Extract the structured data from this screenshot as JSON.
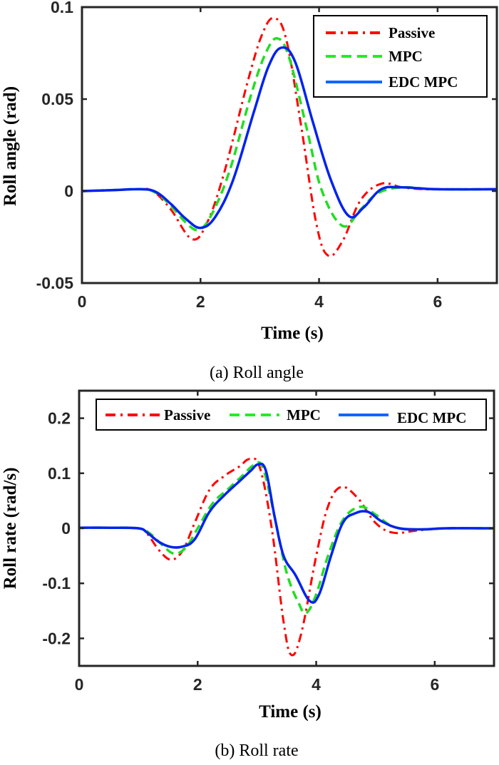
{
  "chart_data": [
    {
      "type": "line",
      "caption": "(a) Roll angle",
      "xlabel": "Time (s)",
      "ylabel": "Roll angle (rad)",
      "xlim": [
        0,
        7
      ],
      "ylim": [
        -0.05,
        0.1
      ],
      "xticks": [
        0,
        2,
        4,
        6
      ],
      "xtick_labels": [
        "0",
        "2",
        "4",
        "6"
      ],
      "yticks": [
        -0.05,
        0,
        0.05,
        0.1
      ],
      "ytick_labels": [
        "-0.05",
        "0",
        "0.05",
        "0.1"
      ],
      "grid": false,
      "legend": {
        "placement": "top-right",
        "orientation": "vertical",
        "entries": [
          "Passive",
          "MPC",
          "EDC MPC"
        ]
      },
      "series": [
        {
          "name": "Passive",
          "color": "#ff0000",
          "style": "dash-dot",
          "x": [
            0,
            0.5,
            1.0,
            1.2,
            1.5,
            1.85,
            2.1,
            2.4,
            2.8,
            3.05,
            3.25,
            3.45,
            3.7,
            3.95,
            4.15,
            4.4,
            4.7,
            5.05,
            5.4,
            5.8,
            6.3,
            7.0
          ],
          "y": [
            0,
            0.0005,
            0.001,
            0.0,
            -0.01,
            -0.026,
            -0.018,
            0.01,
            0.06,
            0.086,
            0.094,
            0.082,
            0.035,
            -0.017,
            -0.035,
            -0.027,
            -0.005,
            0.004,
            0.002,
            0.001,
            0.001,
            0.001
          ]
        },
        {
          "name": "MPC",
          "color": "#22dd22",
          "style": "dashed",
          "x": [
            0,
            0.5,
            1.0,
            1.25,
            1.5,
            1.75,
            1.97,
            2.2,
            2.5,
            2.85,
            3.1,
            3.3,
            3.5,
            3.8,
            4.05,
            4.4,
            4.7,
            5.0,
            5.4,
            6.0,
            7.0
          ],
          "y": [
            0,
            0.0005,
            0.001,
            -0.001,
            -0.008,
            -0.017,
            -0.021,
            -0.012,
            0.012,
            0.052,
            0.075,
            0.083,
            0.072,
            0.033,
            0.0,
            -0.019,
            -0.01,
            -0.001,
            0.002,
            0.001,
            0.001
          ]
        },
        {
          "name": "EDC MPC",
          "color": "#0022ee",
          "style": "solid",
          "x": [
            0,
            0.5,
            1.0,
            1.25,
            1.5,
            1.75,
            2.0,
            2.25,
            2.55,
            2.9,
            3.15,
            3.37,
            3.6,
            3.9,
            4.2,
            4.5,
            4.75,
            5.05,
            5.4,
            6.0,
            7.0
          ],
          "y": [
            0,
            0.0005,
            0.001,
            -0.0005,
            -0.007,
            -0.015,
            -0.02,
            -0.014,
            0.006,
            0.043,
            0.068,
            0.078,
            0.07,
            0.037,
            0.006,
            -0.0135,
            -0.009,
            0.001,
            0.002,
            0.001,
            0.001
          ]
        }
      ]
    },
    {
      "type": "line",
      "caption": "(b) Roll rate",
      "xlabel": "Time (s)",
      "ylabel": "Roll rate (rad/s)",
      "xlim": [
        0,
        7
      ],
      "ylim": [
        -0.25,
        0.25
      ],
      "xticks": [
        0,
        2,
        4,
        6
      ],
      "xtick_labels": [
        "0",
        "2",
        "4",
        "6"
      ],
      "yticks": [
        -0.2,
        -0.1,
        0,
        0.1,
        0.2
      ],
      "ytick_labels": [
        "-0.2",
        "-0.1",
        "0",
        "0.1",
        "0.2"
      ],
      "grid": false,
      "legend": {
        "placement": "top",
        "orientation": "horizontal",
        "entries": [
          "Passive",
          "MPC",
          "EDC MPC"
        ]
      },
      "series": [
        {
          "name": "Passive",
          "color": "#ff0000",
          "style": "dash-dot",
          "x": [
            0,
            0.5,
            1.0,
            1.15,
            1.35,
            1.55,
            1.75,
            1.95,
            2.2,
            2.45,
            2.7,
            2.88,
            3.05,
            3.25,
            3.45,
            3.58,
            3.75,
            4.0,
            4.2,
            4.42,
            4.7,
            5.0,
            5.3,
            5.7,
            6.2,
            7.0
          ],
          "y": [
            0.001,
            0.001,
            0.0,
            -0.01,
            -0.04,
            -0.057,
            -0.04,
            0.01,
            0.07,
            0.095,
            0.112,
            0.126,
            0.11,
            0.0,
            -0.17,
            -0.23,
            -0.19,
            -0.05,
            0.04,
            0.075,
            0.055,
            0.01,
            -0.008,
            -0.004,
            0.0,
            0.0
          ]
        },
        {
          "name": "MPC",
          "color": "#22dd22",
          "style": "dashed",
          "x": [
            0,
            0.5,
            1.0,
            1.2,
            1.4,
            1.6,
            1.8,
            2.0,
            2.25,
            2.5,
            2.75,
            2.95,
            3.1,
            3.3,
            3.5,
            3.7,
            3.83,
            4.0,
            4.2,
            4.45,
            4.74,
            5.0,
            5.3,
            5.7,
            6.2,
            7.0
          ],
          "y": [
            0.001,
            0.001,
            0.0,
            -0.01,
            -0.03,
            -0.046,
            -0.035,
            0.0,
            0.045,
            0.07,
            0.095,
            0.115,
            0.11,
            0.02,
            -0.08,
            -0.135,
            -0.154,
            -0.12,
            -0.05,
            0.015,
            0.039,
            0.025,
            0.003,
            -0.002,
            0.0,
            0.0
          ]
        },
        {
          "name": "EDC MPC",
          "color": "#0022ee",
          "style": "solid",
          "x": [
            0,
            0.5,
            1.0,
            1.15,
            1.35,
            1.55,
            1.75,
            1.95,
            2.2,
            2.45,
            2.7,
            2.9,
            3.02,
            3.15,
            3.3,
            3.45,
            3.65,
            3.89,
            4.05,
            4.25,
            4.45,
            4.65,
            4.87,
            5.1,
            5.4,
            5.8,
            6.2,
            7.0
          ],
          "y": [
            0.001,
            0.001,
            0.0,
            -0.008,
            -0.025,
            -0.034,
            -0.033,
            -0.02,
            0.03,
            0.06,
            0.085,
            0.105,
            0.116,
            0.105,
            0.02,
            -0.05,
            -0.085,
            -0.132,
            -0.12,
            -0.05,
            0.01,
            0.027,
            0.03,
            0.013,
            0.0,
            -0.002,
            0.0,
            0.0
          ]
        }
      ]
    }
  ]
}
